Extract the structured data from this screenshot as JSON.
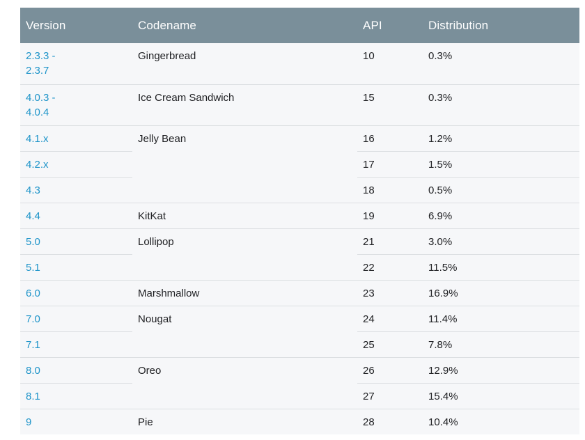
{
  "table": {
    "headers": {
      "version": "Version",
      "codename": "Codename",
      "api": "API",
      "distribution": "Distribution"
    },
    "rows": [
      {
        "version_line1": "2.3.3 -",
        "version_line2": "2.3.7",
        "codename": "Gingerbread",
        "api": "10",
        "distribution": "0.3%"
      },
      {
        "version_line1": "4.0.3 -",
        "version_line2": "4.0.4",
        "codename": "Ice Cream Sandwich",
        "api": "15",
        "distribution": "0.3%"
      },
      {
        "version": "4.1.x",
        "codename": "Jelly Bean",
        "api": "16",
        "distribution": "1.2%"
      },
      {
        "version": "4.2.x",
        "codename": "",
        "api": "17",
        "distribution": "1.5%"
      },
      {
        "version": "4.3",
        "codename": "",
        "api": "18",
        "distribution": "0.5%"
      },
      {
        "version": "4.4",
        "codename": "KitKat",
        "api": "19",
        "distribution": "6.9%"
      },
      {
        "version": "5.0",
        "codename": "Lollipop",
        "api": "21",
        "distribution": "3.0%"
      },
      {
        "version": "5.1",
        "codename": "",
        "api": "22",
        "distribution": "11.5%"
      },
      {
        "version": "6.0",
        "codename": "Marshmallow",
        "api": "23",
        "distribution": "16.9%"
      },
      {
        "version": "7.0",
        "codename": "Nougat",
        "api": "24",
        "distribution": "11.4%"
      },
      {
        "version": "7.1",
        "codename": "",
        "api": "25",
        "distribution": "7.8%"
      },
      {
        "version": "8.0",
        "codename": "Oreo",
        "api": "26",
        "distribution": "12.9%"
      },
      {
        "version": "8.1",
        "codename": "",
        "api": "27",
        "distribution": "15.4%"
      },
      {
        "version": "9",
        "codename": "Pie",
        "api": "28",
        "distribution": "10.4%"
      }
    ]
  },
  "colors": {
    "header_bg": "#7a8f9a",
    "header_text": "#ffffff",
    "row_bg": "#f6f7f9",
    "link": "#1e94c9",
    "text": "#202124",
    "divider": "#dcdfe2"
  }
}
